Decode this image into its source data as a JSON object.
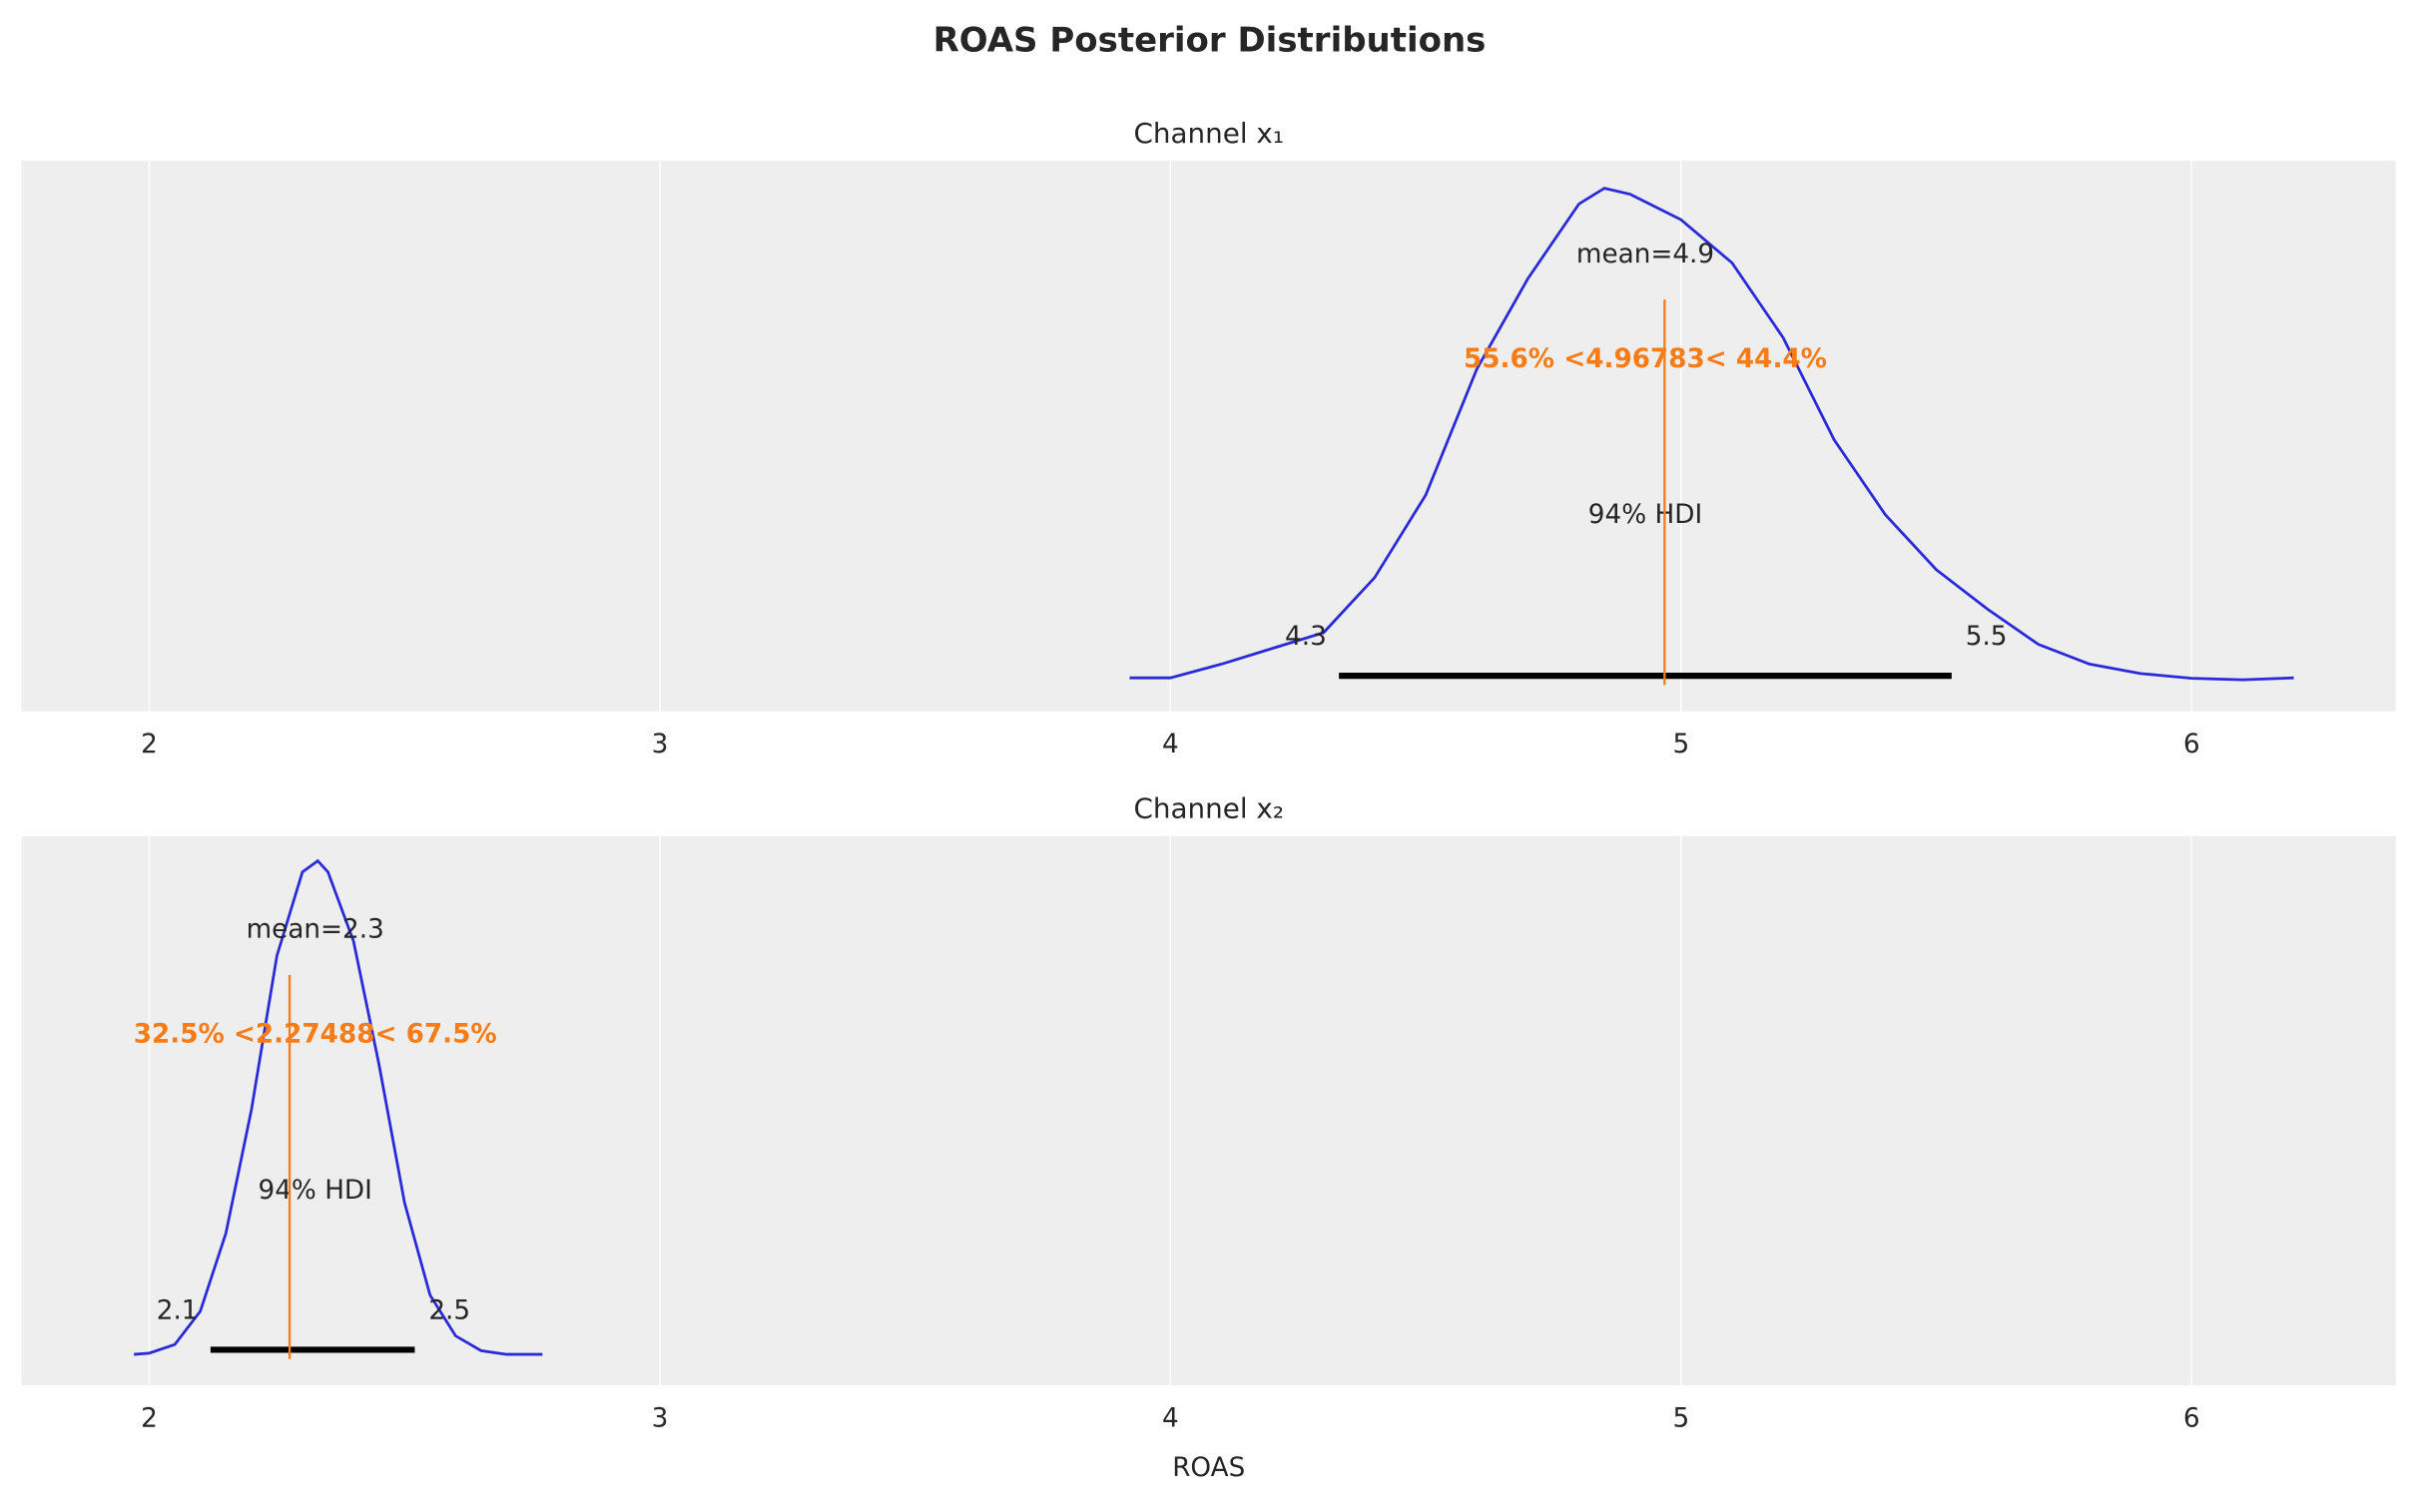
{
  "title": "ROAS Posterior Distributions",
  "chart_data": [
    {
      "type": "density",
      "title": "Channel x₁",
      "color": "#2a2ad8",
      "ref_color": "#fa7c17",
      "x": [
        3.92,
        4.0,
        4.1,
        4.2,
        4.3,
        4.4,
        4.5,
        4.6,
        4.7,
        4.8,
        4.85,
        4.9,
        5.0,
        5.1,
        5.2,
        5.3,
        5.4,
        5.5,
        5.6,
        5.7,
        5.8,
        5.9,
        6.0,
        6.1,
        6.2
      ],
      "values": [
        0.005,
        0.005,
        0.04,
        0.08,
        0.12,
        0.26,
        0.47,
        0.79,
        1.02,
        1.21,
        1.25,
        1.235,
        1.17,
        1.06,
        0.87,
        0.61,
        0.42,
        0.28,
        0.18,
        0.09,
        0.04,
        0.016,
        0.004,
        0.0,
        0.005
      ],
      "mean": 4.93,
      "mean_label": "mean=4.9",
      "ref_val": 4.96783,
      "ref_label": "55.6% <4.96783< 44.4%",
      "hdi": {
        "values": [
          4.33,
          5.53
        ],
        "labels": [
          "4.3",
          "5.5"
        ],
        "prob_label": "94% HDI"
      },
      "xlim": [
        1.75,
        6.4
      ],
      "ylim": [
        -0.08,
        1.32
      ],
      "xticks": [
        2,
        3,
        4,
        5,
        6
      ],
      "grid": true
    },
    {
      "type": "density",
      "title": "Channel x₂",
      "color": "#2a2ad8",
      "ref_color": "#fa7c17",
      "x": [
        1.97,
        2.0,
        2.05,
        2.1,
        2.15,
        2.2,
        2.25,
        2.3,
        2.33,
        2.35,
        2.4,
        2.45,
        2.5,
        2.55,
        2.6,
        2.65,
        2.7,
        2.77
      ],
      "values": [
        0.0,
        0.01,
        0.08,
        0.35,
        0.98,
        1.98,
        3.23,
        3.91,
        4.0,
        3.91,
        3.35,
        2.35,
        1.23,
        0.48,
        0.15,
        0.03,
        0.0,
        0.0
      ],
      "mean": 2.325,
      "mean_label": "mean=2.3",
      "ref_val": 2.27488,
      "ref_label": "32.5% <2.27488< 67.5%",
      "hdi": {
        "values": [
          2.12,
          2.52
        ],
        "labels": [
          "2.1",
          "2.5"
        ],
        "prob_label": "94% HDI"
      },
      "xlim": [
        1.75,
        6.4
      ],
      "ylim": [
        -0.25,
        4.2
      ],
      "xticks": [
        2,
        3,
        4,
        5,
        6
      ],
      "grid": true,
      "xlabel": "ROAS"
    }
  ]
}
